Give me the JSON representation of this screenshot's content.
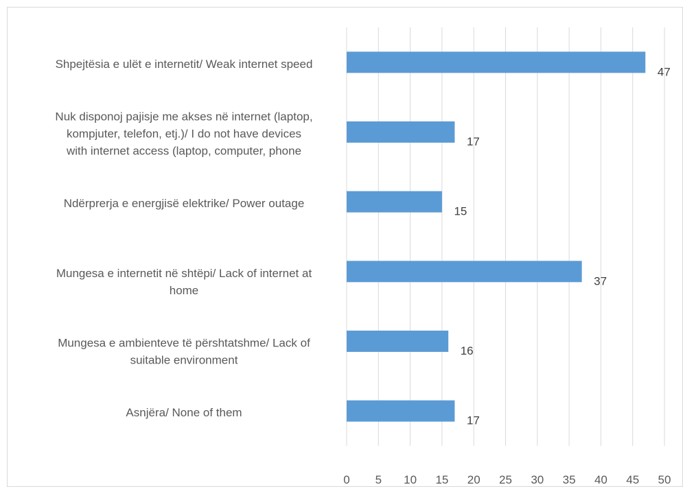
{
  "chart_data": {
    "type": "bar",
    "orientation": "horizontal",
    "categories": [
      [
        "Shpejtësia e ulët e internetit/ Weak internet speed"
      ],
      [
        "Nuk disponoj pajisje me akses në internet (laptop,",
        "kompjuter, telefon, etj.)/ I do not have devices",
        "with internet access (laptop, computer, phone"
      ],
      [
        "Ndërprerja e energjisë elektrike/ Power outage"
      ],
      [
        "Mungesa e internetit në shtëpi/ Lack of internet at",
        "home"
      ],
      [
        "Mungesa e ambienteve të përshtatshme/ Lack of",
        "suitable environment"
      ],
      [
        "Asnjëra/ None of them"
      ]
    ],
    "values": [
      47,
      17,
      15,
      37,
      16,
      17
    ],
    "xlim": [
      0,
      50
    ],
    "xticks": [
      0,
      5,
      10,
      15,
      20,
      25,
      30,
      35,
      40,
      45,
      50
    ],
    "grid": true,
    "bar_color": "#5b9bd5"
  }
}
